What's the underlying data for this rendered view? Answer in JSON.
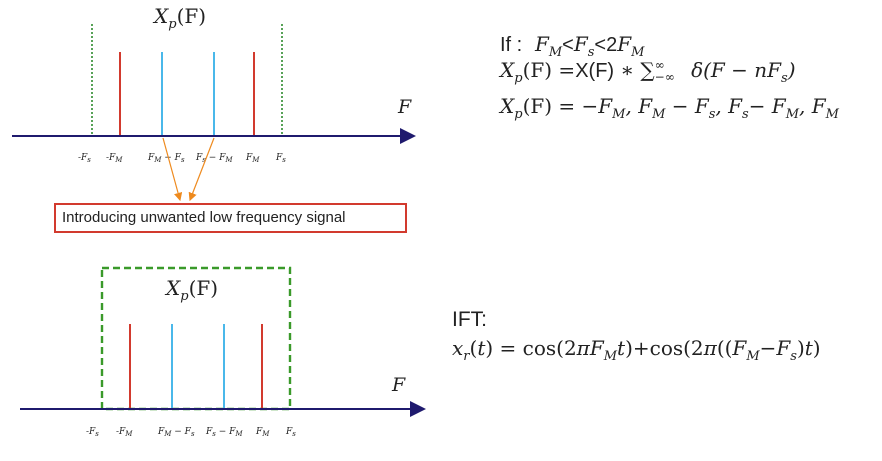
{
  "top_plot": {
    "title": "X_p(F)",
    "title_base": "X",
    "title_sub": "p",
    "title_arg": "(F)",
    "axis_label": "F",
    "ticks": [
      "-F_s",
      "-F_M",
      "F_M - F_s",
      "F_s - F_M",
      "F_M",
      "F_s"
    ]
  },
  "callout": "Introducing unwanted low frequency signal",
  "bottom_plot": {
    "title_base": "X",
    "title_sub": "p",
    "title_arg": "(F)",
    "axis_label": "F",
    "ticks": [
      "-F_s",
      "-F_M",
      "F_M - F_s",
      "F_s - F_M",
      "F_M",
      "F_s"
    ]
  },
  "equations": {
    "line1_prefix": "If :",
    "line1": "F_M < F_s < 2F_M",
    "line2": "X_p(F) = X(F) * Σ_{-∞}^{∞} δ(F − nF_s)",
    "line3": "X_p(F) = −F_M, F_M − F_s, F_s − F_M, F_M"
  },
  "ift": {
    "label": "IFT:",
    "equation": "x_r(t) = cos(2πF_M t)+cos(2π((F_M−F_s)t)"
  },
  "colors": {
    "axis": "#1f1a6e",
    "red_line": "#d23a2e",
    "blue_line": "#4ab8ea",
    "green_dotted": "#2e8b2e",
    "green_box": "#3a9a2a",
    "arrow": "#ee8a1e"
  }
}
